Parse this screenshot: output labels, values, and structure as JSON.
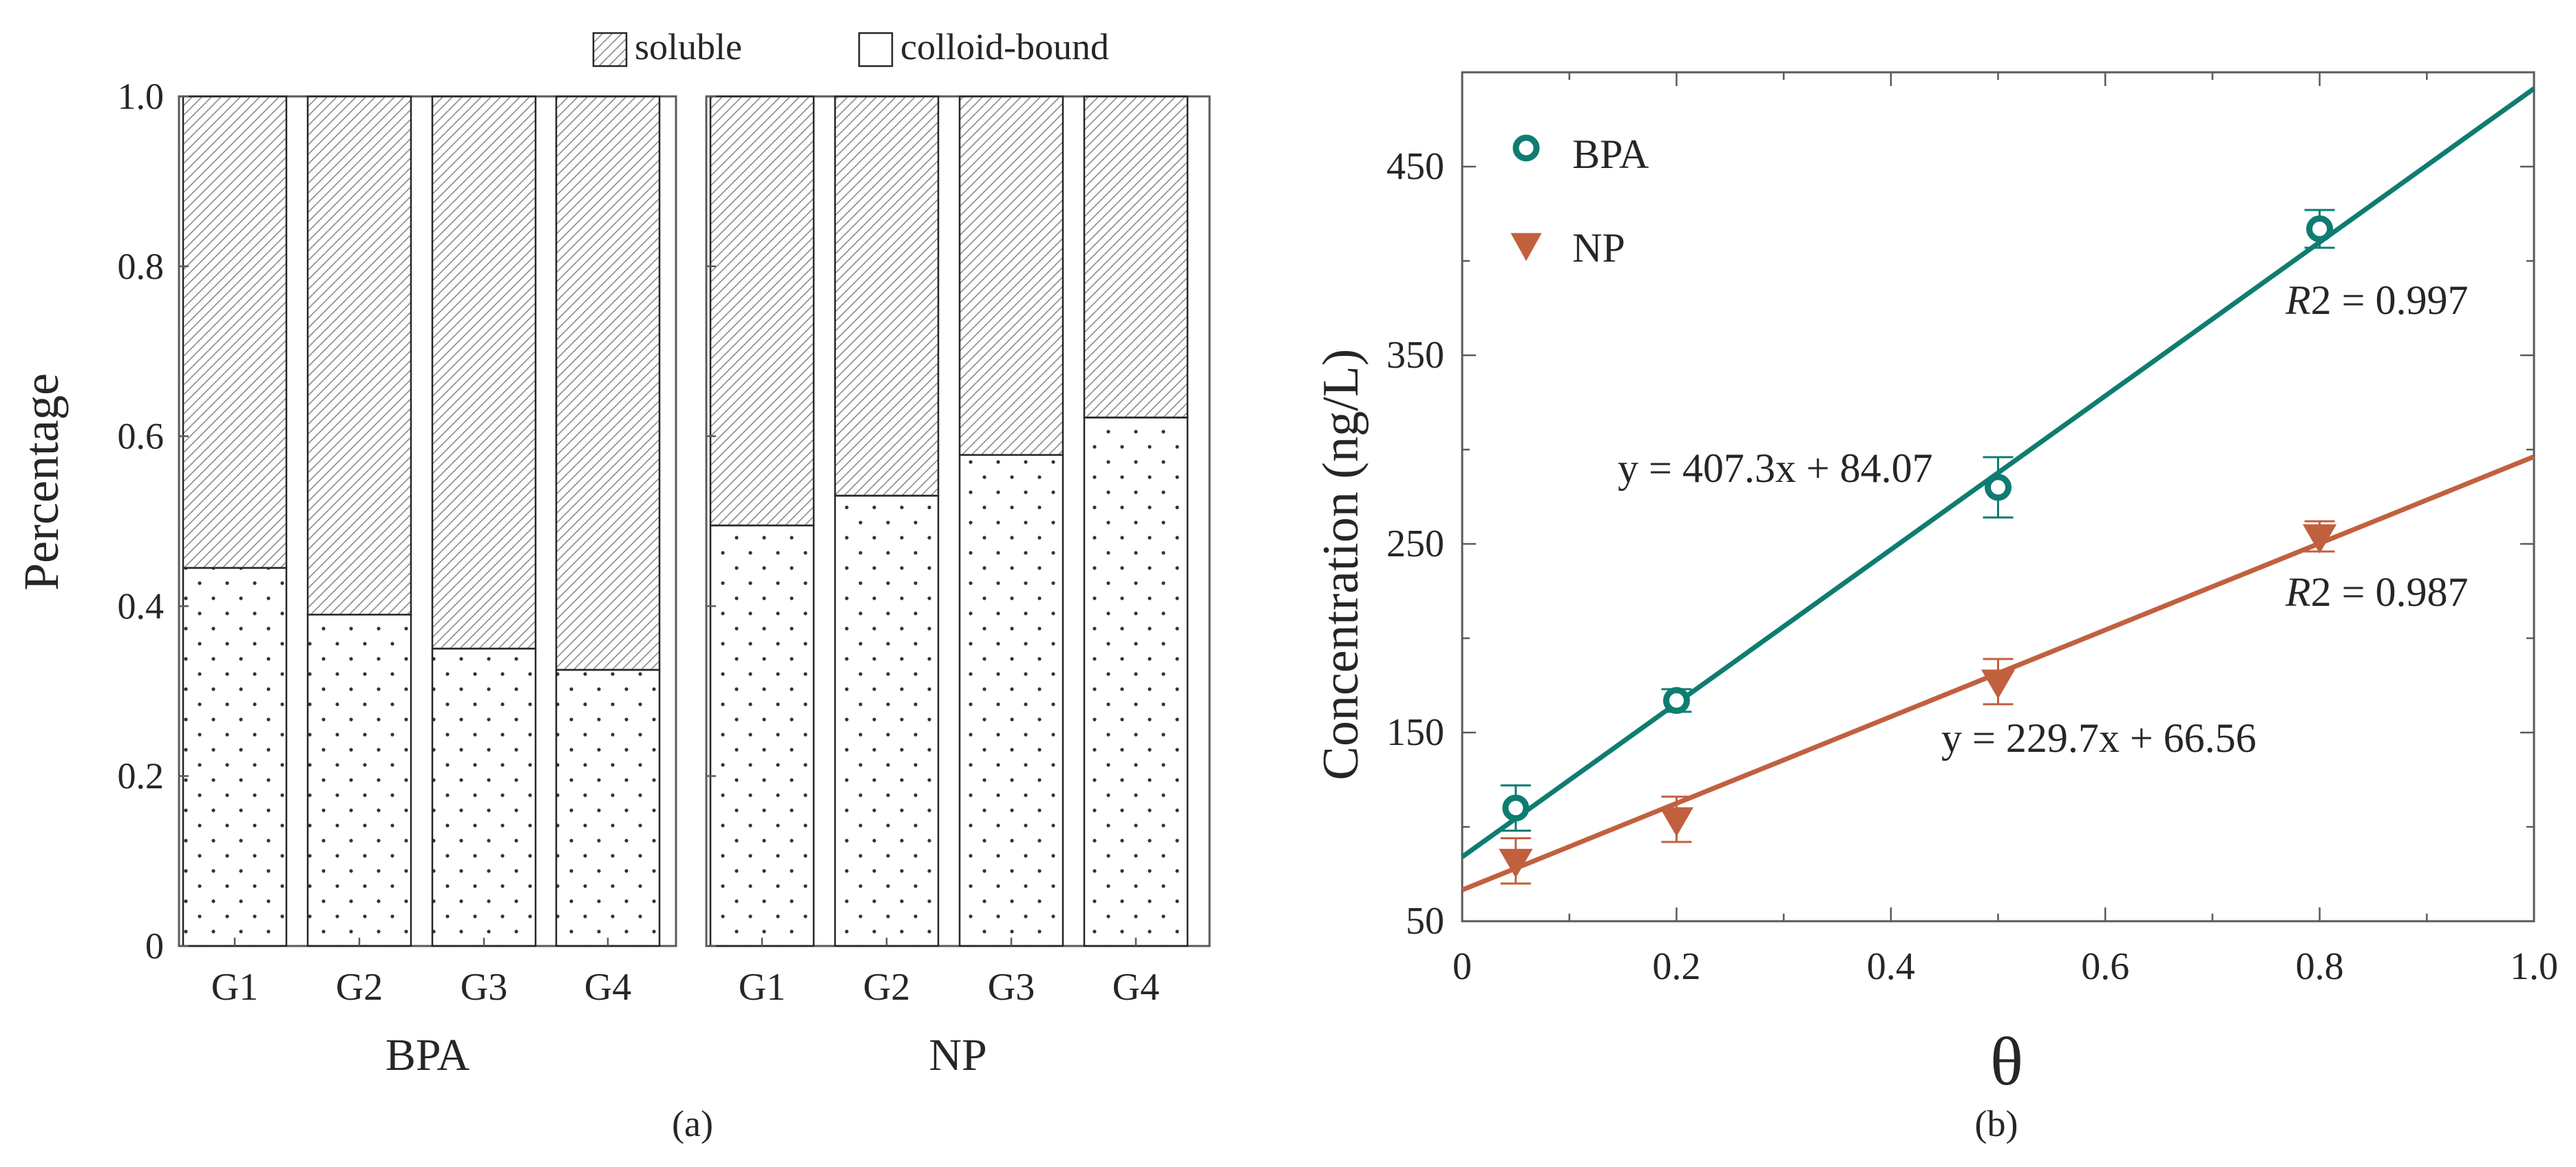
{
  "colors": {
    "axis": "#5a5a5a",
    "text": "#262626",
    "bpa": "#0f7c72",
    "np": "#c1603f",
    "hatch": "#8a8a8a",
    "dots": "#333333"
  },
  "chart_data": [
    {
      "type": "bar",
      "stacked": true,
      "panel_label": "(a)",
      "ylabel": "Percentage",
      "ylim": [
        0,
        1.0
      ],
      "yticks": [
        "0",
        "0.2",
        "0.4",
        "0.6",
        "0.8",
        "1.0"
      ],
      "yticks_values": [
        0,
        0.2,
        0.4,
        0.6,
        0.8,
        1.0
      ],
      "legend": [
        {
          "name": "soluble",
          "pattern": "hatch"
        },
        {
          "name": "colloid-bound",
          "pattern": "empty-box"
        }
      ],
      "groups": [
        {
          "name": "BPA",
          "categories": [
            "G1",
            "G2",
            "G3",
            "G4"
          ],
          "series": [
            {
              "name": "colloid-bound",
              "values": [
                0.445,
                0.39,
                0.35,
                0.325
              ]
            },
            {
              "name": "soluble",
              "values": [
                0.555,
                0.61,
                0.65,
                0.675
              ]
            }
          ]
        },
        {
          "name": "NP",
          "categories": [
            "G1",
            "G2",
            "G3",
            "G4"
          ],
          "series": [
            {
              "name": "colloid-bound",
              "values": [
                0.495,
                0.53,
                0.578,
                0.622
              ]
            },
            {
              "name": "soluble",
              "values": [
                0.505,
                0.47,
                0.422,
                0.378
              ]
            }
          ]
        }
      ]
    },
    {
      "type": "scatter",
      "panel_label": "(b)",
      "xlabel": "θ",
      "ylabel": "Concentration (ng/L)",
      "xlim": [
        0,
        1.0
      ],
      "ylim": [
        50,
        500
      ],
      "xticks": [
        "0",
        "0.2",
        "0.4",
        "0.6",
        "0.8",
        "1.0"
      ],
      "xticks_values": [
        0,
        0.2,
        0.4,
        0.6,
        0.8,
        1.0
      ],
      "yticks": [
        "50",
        "150",
        "250",
        "350",
        "450"
      ],
      "yticks_values": [
        50,
        150,
        250,
        350,
        450
      ],
      "series": [
        {
          "name": "BPA",
          "marker": "circle",
          "x": [
            0.05,
            0.2,
            0.5,
            0.8
          ],
          "y": [
            110,
            167,
            280,
            417
          ],
          "err": [
            12,
            6,
            16,
            10
          ],
          "fit": {
            "slope": 407.3,
            "intercept": 84.07
          },
          "equation": "y = 407.3x + 84.07",
          "r2_label": "R",
          "r2_value": "2 = 0.997"
        },
        {
          "name": "NP",
          "marker": "triangle-down",
          "x": [
            0.05,
            0.2,
            0.5,
            0.8
          ],
          "y": [
            82,
            104,
            177,
            254
          ],
          "err": [
            12,
            12,
            12,
            8
          ],
          "fit": {
            "slope": 229.7,
            "intercept": 66.56
          },
          "equation": "y = 229.7x + 66.56",
          "r2_label": "R",
          "r2_value": "2 = 0.987"
        }
      ]
    }
  ]
}
